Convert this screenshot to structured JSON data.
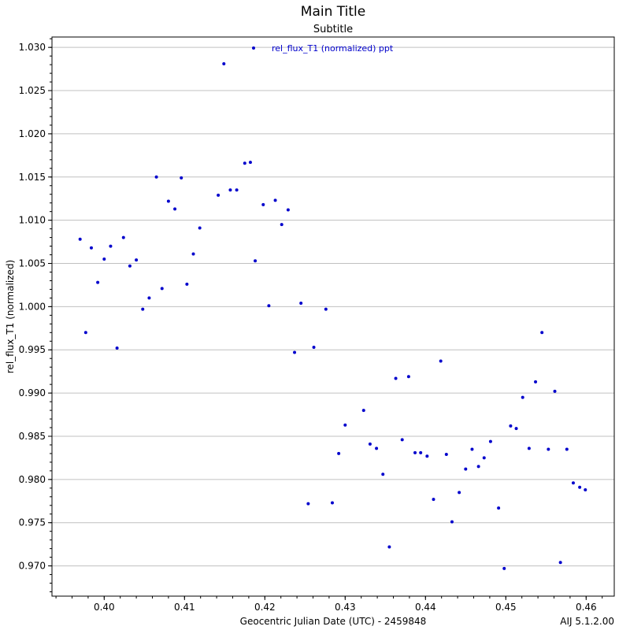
{
  "chart_data": {
    "type": "scatter",
    "title": "Main Title",
    "subtitle": "Subtitle",
    "xlabel": "Geocentric Julian Date (UTC) - 2459848",
    "ylabel": "rel_flux_T1 (normalized)",
    "footer_label": "AIJ 5.1.2.00",
    "xlim": [
      0.3935,
      0.4635
    ],
    "ylim": [
      0.9665,
      1.0312
    ],
    "x_ticks": [
      0.4,
      0.41,
      0.42,
      0.43,
      0.44,
      0.45,
      0.46
    ],
    "x_tick_labels": [
      "0.40",
      "0.41",
      "0.42",
      "0.43",
      "0.44",
      "0.45",
      "0.46"
    ],
    "y_ticks": [
      0.97,
      0.975,
      0.98,
      0.985,
      0.99,
      0.995,
      1.0,
      1.005,
      1.01,
      1.015,
      1.02,
      1.025,
      1.03
    ],
    "y_tick_labels": [
      "0.970",
      "0.975",
      "0.980",
      "0.985",
      "0.990",
      "0.995",
      "1.000",
      "1.005",
      "1.010",
      "1.015",
      "1.020",
      "1.025",
      "1.030"
    ],
    "grid": "horizontal",
    "legend_position": "top",
    "series": [
      {
        "name": "rel_flux_T1 (normalized) ppt",
        "color": "#0000cc",
        "points": [
          [
            0.397,
            1.0078
          ],
          [
            0.3977,
            0.997
          ],
          [
            0.3984,
            1.0068
          ],
          [
            0.3992,
            1.0028
          ],
          [
            0.4,
            1.0055
          ],
          [
            0.4008,
            1.007
          ],
          [
            0.4016,
            0.9952
          ],
          [
            0.4024,
            1.008
          ],
          [
            0.4032,
            1.0047
          ],
          [
            0.404,
            1.0054
          ],
          [
            0.4048,
            0.9997
          ],
          [
            0.4056,
            1.001
          ],
          [
            0.4065,
            1.015
          ],
          [
            0.4072,
            1.0021
          ],
          [
            0.408,
            1.0122
          ],
          [
            0.4088,
            1.0113
          ],
          [
            0.4096,
            1.0149
          ],
          [
            0.4103,
            1.0026
          ],
          [
            0.4111,
            1.0061
          ],
          [
            0.4119,
            1.0091
          ],
          [
            0.4142,
            1.0129
          ],
          [
            0.4149,
            1.0281
          ],
          [
            0.4157,
            1.0135
          ],
          [
            0.4165,
            1.0135
          ],
          [
            0.4175,
            1.0166
          ],
          [
            0.4182,
            1.0167
          ],
          [
            0.4188,
            1.0053
          ],
          [
            0.4198,
            1.0118
          ],
          [
            0.4205,
            1.0001
          ],
          [
            0.4213,
            1.0123
          ],
          [
            0.4221,
            1.0095
          ],
          [
            0.4229,
            1.0112
          ],
          [
            0.4237,
            0.9947
          ],
          [
            0.4245,
            1.0004
          ],
          [
            0.4254,
            0.9772
          ],
          [
            0.4261,
            0.9953
          ],
          [
            0.4276,
            0.9997
          ],
          [
            0.4284,
            0.9773
          ],
          [
            0.4292,
            0.983
          ],
          [
            0.43,
            0.9863
          ],
          [
            0.4323,
            0.988
          ],
          [
            0.4331,
            0.9841
          ],
          [
            0.4339,
            0.9836
          ],
          [
            0.4347,
            0.9806
          ],
          [
            0.4355,
            0.9722
          ],
          [
            0.4363,
            0.9917
          ],
          [
            0.4371,
            0.9846
          ],
          [
            0.4379,
            0.9919
          ],
          [
            0.4387,
            0.9831
          ],
          [
            0.4394,
            0.9831
          ],
          [
            0.4402,
            0.9827
          ],
          [
            0.441,
            0.9777
          ],
          [
            0.4419,
            0.9937
          ],
          [
            0.4426,
            0.9829
          ],
          [
            0.4433,
            0.9751
          ],
          [
            0.4442,
            0.9785
          ],
          [
            0.445,
            0.9812
          ],
          [
            0.4458,
            0.9835
          ],
          [
            0.4466,
            0.9815
          ],
          [
            0.4473,
            0.9825
          ],
          [
            0.4481,
            0.9844
          ],
          [
            0.4491,
            0.9767
          ],
          [
            0.4498,
            0.9697
          ],
          [
            0.4506,
            0.9862
          ],
          [
            0.4513,
            0.9859
          ],
          [
            0.4521,
            0.9895
          ],
          [
            0.4529,
            0.9836
          ],
          [
            0.4537,
            0.9913
          ],
          [
            0.4545,
            0.997
          ],
          [
            0.4553,
            0.9835
          ],
          [
            0.4561,
            0.9902
          ],
          [
            0.4568,
            0.9704
          ],
          [
            0.4576,
            0.9835
          ],
          [
            0.4584,
            0.9796
          ],
          [
            0.4592,
            0.9791
          ],
          [
            0.4599,
            0.9788
          ]
        ]
      }
    ]
  }
}
